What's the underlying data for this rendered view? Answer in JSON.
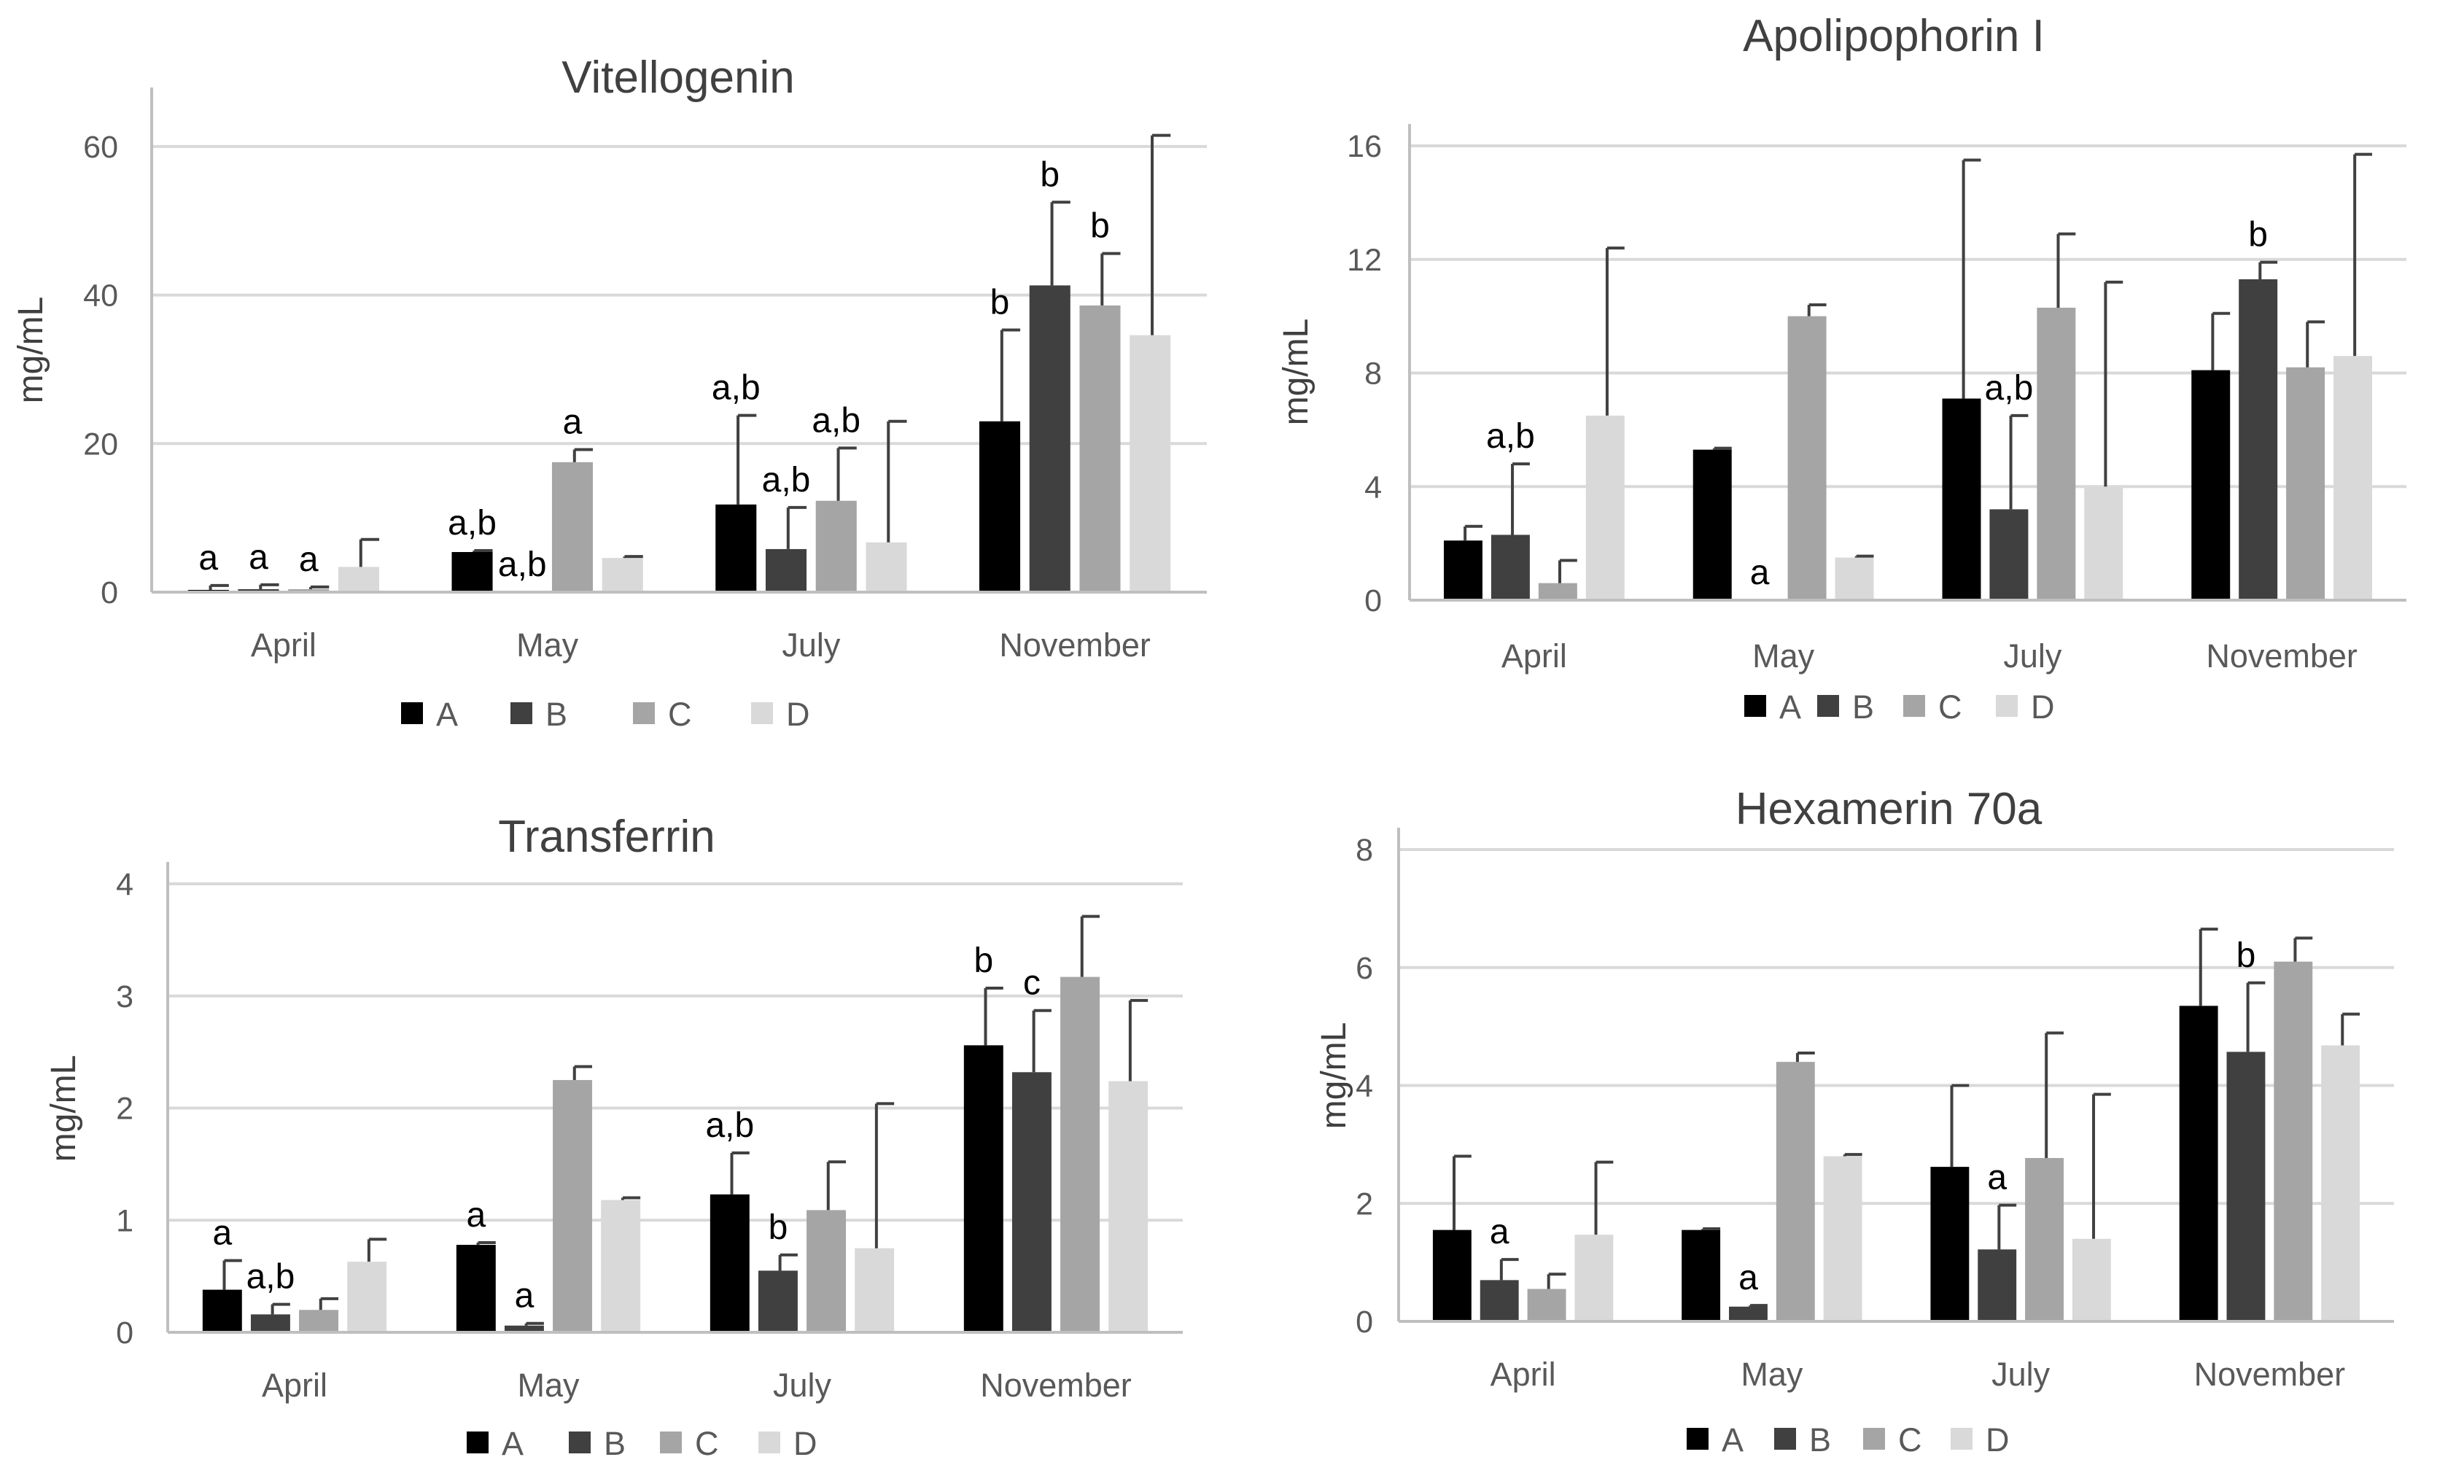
{
  "colors": {
    "A": "#000000",
    "B": "#404040",
    "C": "#a5a5a5",
    "D": "#d9d9d9",
    "grid": "#d9d9d9",
    "axis": "#bfbfbf",
    "text": "#404040",
    "tick": "#595959",
    "annotation": "#000000",
    "error": "#404040"
  },
  "chart_data": [
    {
      "id": "vitellogenin",
      "type": "bar",
      "title": "Vitellogenin",
      "xlabel": "",
      "ylabel": "mg/mL",
      "categories": [
        "April",
        "May",
        "July",
        "November"
      ],
      "ylim": [
        0,
        65
      ],
      "yticks": [
        0,
        20,
        40,
        60
      ],
      "grid": true,
      "legend": "bottom",
      "series": [
        {
          "name": "A",
          "values": [
            0.3,
            5.4,
            11.8,
            23.0
          ],
          "err": [
            0.6,
            0.2,
            12.0,
            12.3
          ],
          "labels": [
            "a",
            "a,b",
            "a,b",
            "b"
          ]
        },
        {
          "name": "B",
          "values": [
            0.4,
            0.0,
            5.8,
            41.3
          ],
          "err": [
            0.6,
            0.0,
            5.6,
            11.2
          ],
          "labels": [
            "a",
            "a,b",
            "a,b",
            "b"
          ]
        },
        {
          "name": "C",
          "values": [
            0.4,
            17.5,
            12.3,
            38.6
          ],
          "err": [
            0.3,
            1.7,
            7.1,
            7.0
          ],
          "labels": [
            "a",
            "a",
            "a,b",
            "b"
          ]
        },
        {
          "name": "D",
          "values": [
            3.4,
            4.6,
            6.7,
            34.6
          ],
          "err": [
            3.7,
            0.2,
            16.3,
            26.9
          ],
          "labels": [
            "",
            "",
            "",
            ""
          ]
        }
      ]
    },
    {
      "id": "apolipophorin",
      "type": "bar",
      "title": "Apolipophorin I",
      "xlabel": "",
      "ylabel": "mg/mL",
      "categories": [
        "April",
        "May",
        "July",
        "November"
      ],
      "ylim": [
        0,
        16
      ],
      "yticks": [
        0,
        4,
        8,
        12,
        16
      ],
      "grid": true,
      "legend": "bottom",
      "series": [
        {
          "name": "A",
          "values": [
            2.1,
            5.3,
            7.1,
            8.1
          ],
          "err": [
            0.5,
            0.05,
            8.4,
            2.0
          ],
          "labels": [
            "",
            "",
            "",
            ""
          ]
        },
        {
          "name": "B",
          "values": [
            2.3,
            0.0,
            3.2,
            11.3
          ],
          "err": [
            2.5,
            0.0,
            3.3,
            0.6
          ],
          "labels": [
            "a,b",
            "a",
            "a,b",
            "b"
          ]
        },
        {
          "name": "C",
          "values": [
            0.6,
            10.0,
            10.3,
            8.2
          ],
          "err": [
            0.8,
            0.4,
            2.6,
            1.6
          ],
          "labels": [
            "",
            "",
            "",
            ""
          ]
        },
        {
          "name": "D",
          "values": [
            6.5,
            1.5,
            4.0,
            8.6
          ],
          "err": [
            5.9,
            0.05,
            7.2,
            7.1
          ],
          "labels": [
            "",
            "",
            "",
            ""
          ]
        }
      ]
    },
    {
      "id": "transferrin",
      "type": "bar",
      "title": "Transferrin",
      "xlabel": "",
      "ylabel": "mg/mL",
      "categories": [
        "April",
        "May",
        "July",
        "November"
      ],
      "ylim": [
        0,
        4
      ],
      "yticks": [
        0,
        1,
        2,
        3,
        4
      ],
      "grid": true,
      "legend": "bottom",
      "series": [
        {
          "name": "A",
          "values": [
            0.38,
            0.78,
            1.23,
            2.56
          ],
          "err": [
            0.26,
            0.02,
            0.37,
            0.51
          ],
          "labels": [
            "a",
            "a",
            "a,b",
            "b"
          ]
        },
        {
          "name": "B",
          "values": [
            0.16,
            0.06,
            0.55,
            2.32
          ],
          "err": [
            0.09,
            0.02,
            0.14,
            0.55
          ],
          "labels": [
            "a,b",
            "a",
            "b",
            "c"
          ]
        },
        {
          "name": "C",
          "values": [
            0.2,
            2.25,
            1.09,
            3.17
          ],
          "err": [
            0.1,
            0.12,
            0.43,
            0.54
          ],
          "labels": [
            "",
            "",
            "",
            ""
          ]
        },
        {
          "name": "D",
          "values": [
            0.63,
            1.18,
            0.75,
            2.24
          ],
          "err": [
            0.2,
            0.02,
            1.29,
            0.72
          ],
          "labels": [
            "",
            "",
            "",
            ""
          ]
        }
      ]
    },
    {
      "id": "hexamerin",
      "type": "bar",
      "title": "Hexamerin 70a",
      "xlabel": "",
      "ylabel": "mg/mL",
      "categories": [
        "April",
        "May",
        "July",
        "November"
      ],
      "ylim": [
        0,
        8
      ],
      "yticks": [
        0,
        2,
        4,
        6,
        8
      ],
      "grid": true,
      "legend": "bottom",
      "series": [
        {
          "name": "A",
          "values": [
            1.55,
            1.55,
            2.62,
            5.35
          ],
          "err": [
            1.25,
            0.02,
            1.38,
            1.3
          ],
          "labels": [
            "",
            "",
            "",
            ""
          ]
        },
        {
          "name": "B",
          "values": [
            0.7,
            0.25,
            1.22,
            4.57
          ],
          "err": [
            0.35,
            0.02,
            0.75,
            1.17
          ],
          "labels": [
            "a",
            "a",
            "a",
            "b"
          ]
        },
        {
          "name": "C",
          "values": [
            0.55,
            4.4,
            2.77,
            6.1
          ],
          "err": [
            0.25,
            0.15,
            2.12,
            0.4
          ],
          "labels": [
            "",
            "",
            "",
            ""
          ]
        },
        {
          "name": "D",
          "values": [
            1.47,
            2.8,
            1.4,
            4.68
          ],
          "err": [
            1.23,
            0.03,
            2.45,
            0.53
          ],
          "labels": [
            "",
            "",
            "",
            ""
          ]
        }
      ]
    }
  ]
}
